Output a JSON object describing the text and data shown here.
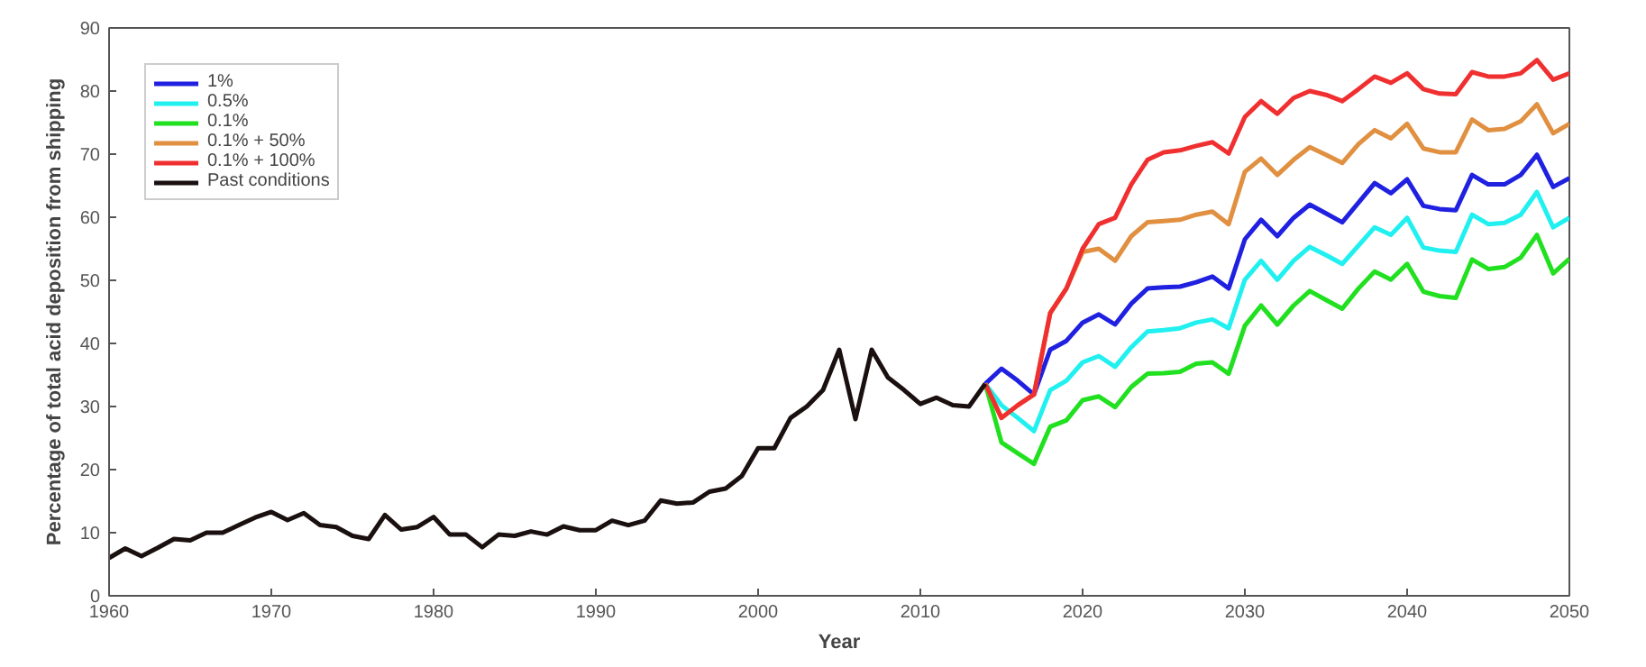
{
  "chart_data": {
    "type": "line",
    "xlabel": "Year",
    "ylabel": "Percentage of total acid deposition from shipping",
    "xlim": [
      1960,
      2050
    ],
    "ylim": [
      0,
      90
    ],
    "xticks": [
      1960,
      1970,
      1980,
      1990,
      2000,
      2010,
      2020,
      2030,
      2040,
      2050
    ],
    "yticks": [
      0,
      10,
      20,
      30,
      40,
      50,
      60,
      70,
      80,
      90
    ],
    "grid": false,
    "legend": "top left",
    "line_style": "solid",
    "marker": "none",
    "series": [
      {
        "name": "1%",
        "color": "#2020e0",
        "x": [
          2014,
          2015,
          2016,
          2017,
          2018,
          2019,
          2020,
          2021,
          2022,
          2023,
          2024,
          2025,
          2026,
          2027,
          2028,
          2029,
          2030,
          2031,
          2032,
          2033,
          2034,
          2035,
          2036,
          2037,
          2038,
          2039,
          2040,
          2041,
          2042,
          2043,
          2044,
          2045,
          2046,
          2047,
          2048,
          2049,
          2050
        ],
        "values": [
          33.6,
          36,
          34.1,
          31.9,
          39,
          40.4,
          43.3,
          44.6,
          43,
          46.3,
          48.7,
          48.9,
          49,
          49.7,
          50.6,
          48.7,
          56.5,
          59.6,
          57,
          59.9,
          62,
          60.6,
          59.2,
          62.3,
          65.4,
          63.8,
          66,
          61.8,
          61.3,
          61.1,
          66.7,
          65.2,
          65.2,
          66.7,
          69.9,
          64.8,
          66.2
        ]
      },
      {
        "name": "0.5%",
        "color": "#20f0f0",
        "x": [
          2014,
          2015,
          2016,
          2017,
          2018,
          2019,
          2020,
          2021,
          2022,
          2023,
          2024,
          2025,
          2026,
          2027,
          2028,
          2029,
          2030,
          2031,
          2032,
          2033,
          2034,
          2035,
          2036,
          2037,
          2038,
          2039,
          2040,
          2041,
          2042,
          2043,
          2044,
          2045,
          2046,
          2047,
          2048,
          2049,
          2050
        ],
        "values": [
          33.6,
          30.2,
          28.2,
          26.1,
          32.6,
          34.1,
          37,
          38,
          36.3,
          39.4,
          41.9,
          42.1,
          42.4,
          43.3,
          43.8,
          42.4,
          50.1,
          53.1,
          50.1,
          53.1,
          55.3,
          54,
          52.6,
          55.5,
          58.4,
          57.2,
          59.9,
          55.2,
          54.7,
          54.5,
          60.4,
          58.9,
          59.1,
          60.4,
          64,
          58.4,
          59.9
        ]
      },
      {
        "name": "0.1%",
        "color": "#20e020",
        "x": [
          2014,
          2015,
          2016,
          2017,
          2018,
          2019,
          2020,
          2021,
          2022,
          2023,
          2024,
          2025,
          2026,
          2027,
          2028,
          2029,
          2030,
          2031,
          2032,
          2033,
          2034,
          2035,
          2036,
          2037,
          2038,
          2039,
          2040,
          2041,
          2042,
          2043,
          2044,
          2045,
          2046,
          2047,
          2048,
          2049,
          2050
        ],
        "values": [
          33.6,
          24.3,
          22.6,
          20.9,
          26.8,
          27.8,
          31,
          31.6,
          29.9,
          33.1,
          35.2,
          35.3,
          35.5,
          36.8,
          37,
          35.2,
          42.8,
          46,
          43,
          46,
          48.3,
          46.9,
          45.5,
          48.7,
          51.4,
          50.1,
          52.6,
          48.2,
          47.5,
          47.2,
          53.3,
          51.8,
          52.1,
          53.6,
          57.2,
          51.1,
          53.4
        ]
      },
      {
        "name": "0.1% + 50%",
        "color": "#e09040",
        "x": [
          2014,
          2015,
          2016,
          2017,
          2018,
          2019,
          2020,
          2021,
          2022,
          2023,
          2024,
          2025,
          2026,
          2027,
          2028,
          2029,
          2030,
          2031,
          2032,
          2033,
          2034,
          2035,
          2036,
          2037,
          2038,
          2039,
          2040,
          2041,
          2042,
          2043,
          2044,
          2045,
          2046,
          2047,
          2048,
          2049,
          2050
        ],
        "values": [
          33.6,
          28.2,
          30.2,
          31.9,
          44.8,
          48.7,
          54.5,
          55,
          53.1,
          57,
          59.2,
          59.4,
          59.6,
          60.4,
          60.9,
          58.9,
          67.2,
          69.3,
          66.7,
          69.1,
          71.1,
          69.9,
          68.6,
          71.6,
          73.8,
          72.5,
          74.8,
          70.9,
          70.3,
          70.3,
          75.5,
          73.8,
          74,
          75.2,
          77.9,
          73.3,
          74.8
        ]
      },
      {
        "name": "0.1% + 100%",
        "color": "#f03030",
        "x": [
          2014,
          2015,
          2016,
          2017,
          2018,
          2019,
          2020,
          2021,
          2022,
          2023,
          2024,
          2025,
          2026,
          2027,
          2028,
          2029,
          2030,
          2031,
          2032,
          2033,
          2034,
          2035,
          2036,
          2037,
          2038,
          2039,
          2040,
          2041,
          2042,
          2043,
          2044,
          2045,
          2046,
          2047,
          2048,
          2049,
          2050
        ],
        "values": [
          33.6,
          28.2,
          30.2,
          31.9,
          44.8,
          48.7,
          55,
          58.9,
          59.9,
          65.2,
          69.1,
          70.3,
          70.6,
          71.3,
          71.9,
          70.1,
          75.9,
          78.4,
          76.4,
          78.9,
          80,
          79.4,
          78.4,
          80.3,
          82.3,
          81.3,
          82.8,
          80.3,
          79.6,
          79.5,
          83,
          82.3,
          82.3,
          82.8,
          84.9,
          81.8,
          82.8
        ]
      },
      {
        "name": "Past conditions",
        "color": "#1a1010",
        "x": [
          1960,
          1961,
          1962,
          1963,
          1964,
          1965,
          1966,
          1967,
          1968,
          1969,
          1970,
          1971,
          1972,
          1973,
          1974,
          1975,
          1976,
          1977,
          1978,
          1979,
          1980,
          1981,
          1982,
          1983,
          1984,
          1985,
          1986,
          1987,
          1988,
          1989,
          1990,
          1991,
          1992,
          1993,
          1994,
          1995,
          1996,
          1997,
          1998,
          1999,
          2000,
          2001,
          2002,
          2003,
          2004,
          2005,
          2006,
          2007,
          2008,
          2009,
          2010,
          2011,
          2012,
          2013,
          2014
        ],
        "values": [
          6,
          7.5,
          6.3,
          7.6,
          9,
          8.8,
          10,
          10,
          11.2,
          12.4,
          13.3,
          12,
          13.1,
          11.2,
          10.9,
          9.5,
          9,
          12.8,
          10.5,
          10.9,
          12.5,
          9.7,
          9.7,
          7.7,
          9.7,
          9.5,
          10.2,
          9.7,
          11,
          10.4,
          10.4,
          11.9,
          11.2,
          11.9,
          15.1,
          14.6,
          14.8,
          16.5,
          17,
          19,
          23.4,
          23.4,
          28.2,
          30,
          32.6,
          39,
          28,
          39,
          34.6,
          32.6,
          30.4,
          31.4,
          30.2,
          30,
          33.6
        ]
      }
    ]
  }
}
